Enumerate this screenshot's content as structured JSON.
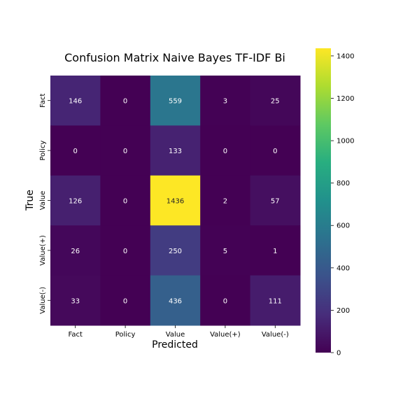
{
  "chart_data": {
    "type": "heatmap",
    "title": "Confusion Matrix Naive Bayes TF-IDF Bi",
    "xlabel": "Predicted",
    "ylabel": "True",
    "x_categories": [
      "Fact",
      "Policy",
      "Value",
      "Value(+)",
      "Value(-)"
    ],
    "y_categories": [
      "Fact",
      "Policy",
      "Value",
      "Value(+)",
      "Value(-)"
    ],
    "values": [
      [
        146,
        0,
        559,
        3,
        25
      ],
      [
        0,
        0,
        133,
        0,
        0
      ],
      [
        126,
        0,
        1436,
        2,
        57
      ],
      [
        26,
        0,
        250,
        5,
        1
      ],
      [
        33,
        0,
        436,
        0,
        111
      ]
    ],
    "colormap": "viridis",
    "vmin": 0,
    "vmax": 1436,
    "colorbar_ticks": [
      0,
      200,
      400,
      600,
      800,
      1000,
      1200,
      1400
    ]
  }
}
